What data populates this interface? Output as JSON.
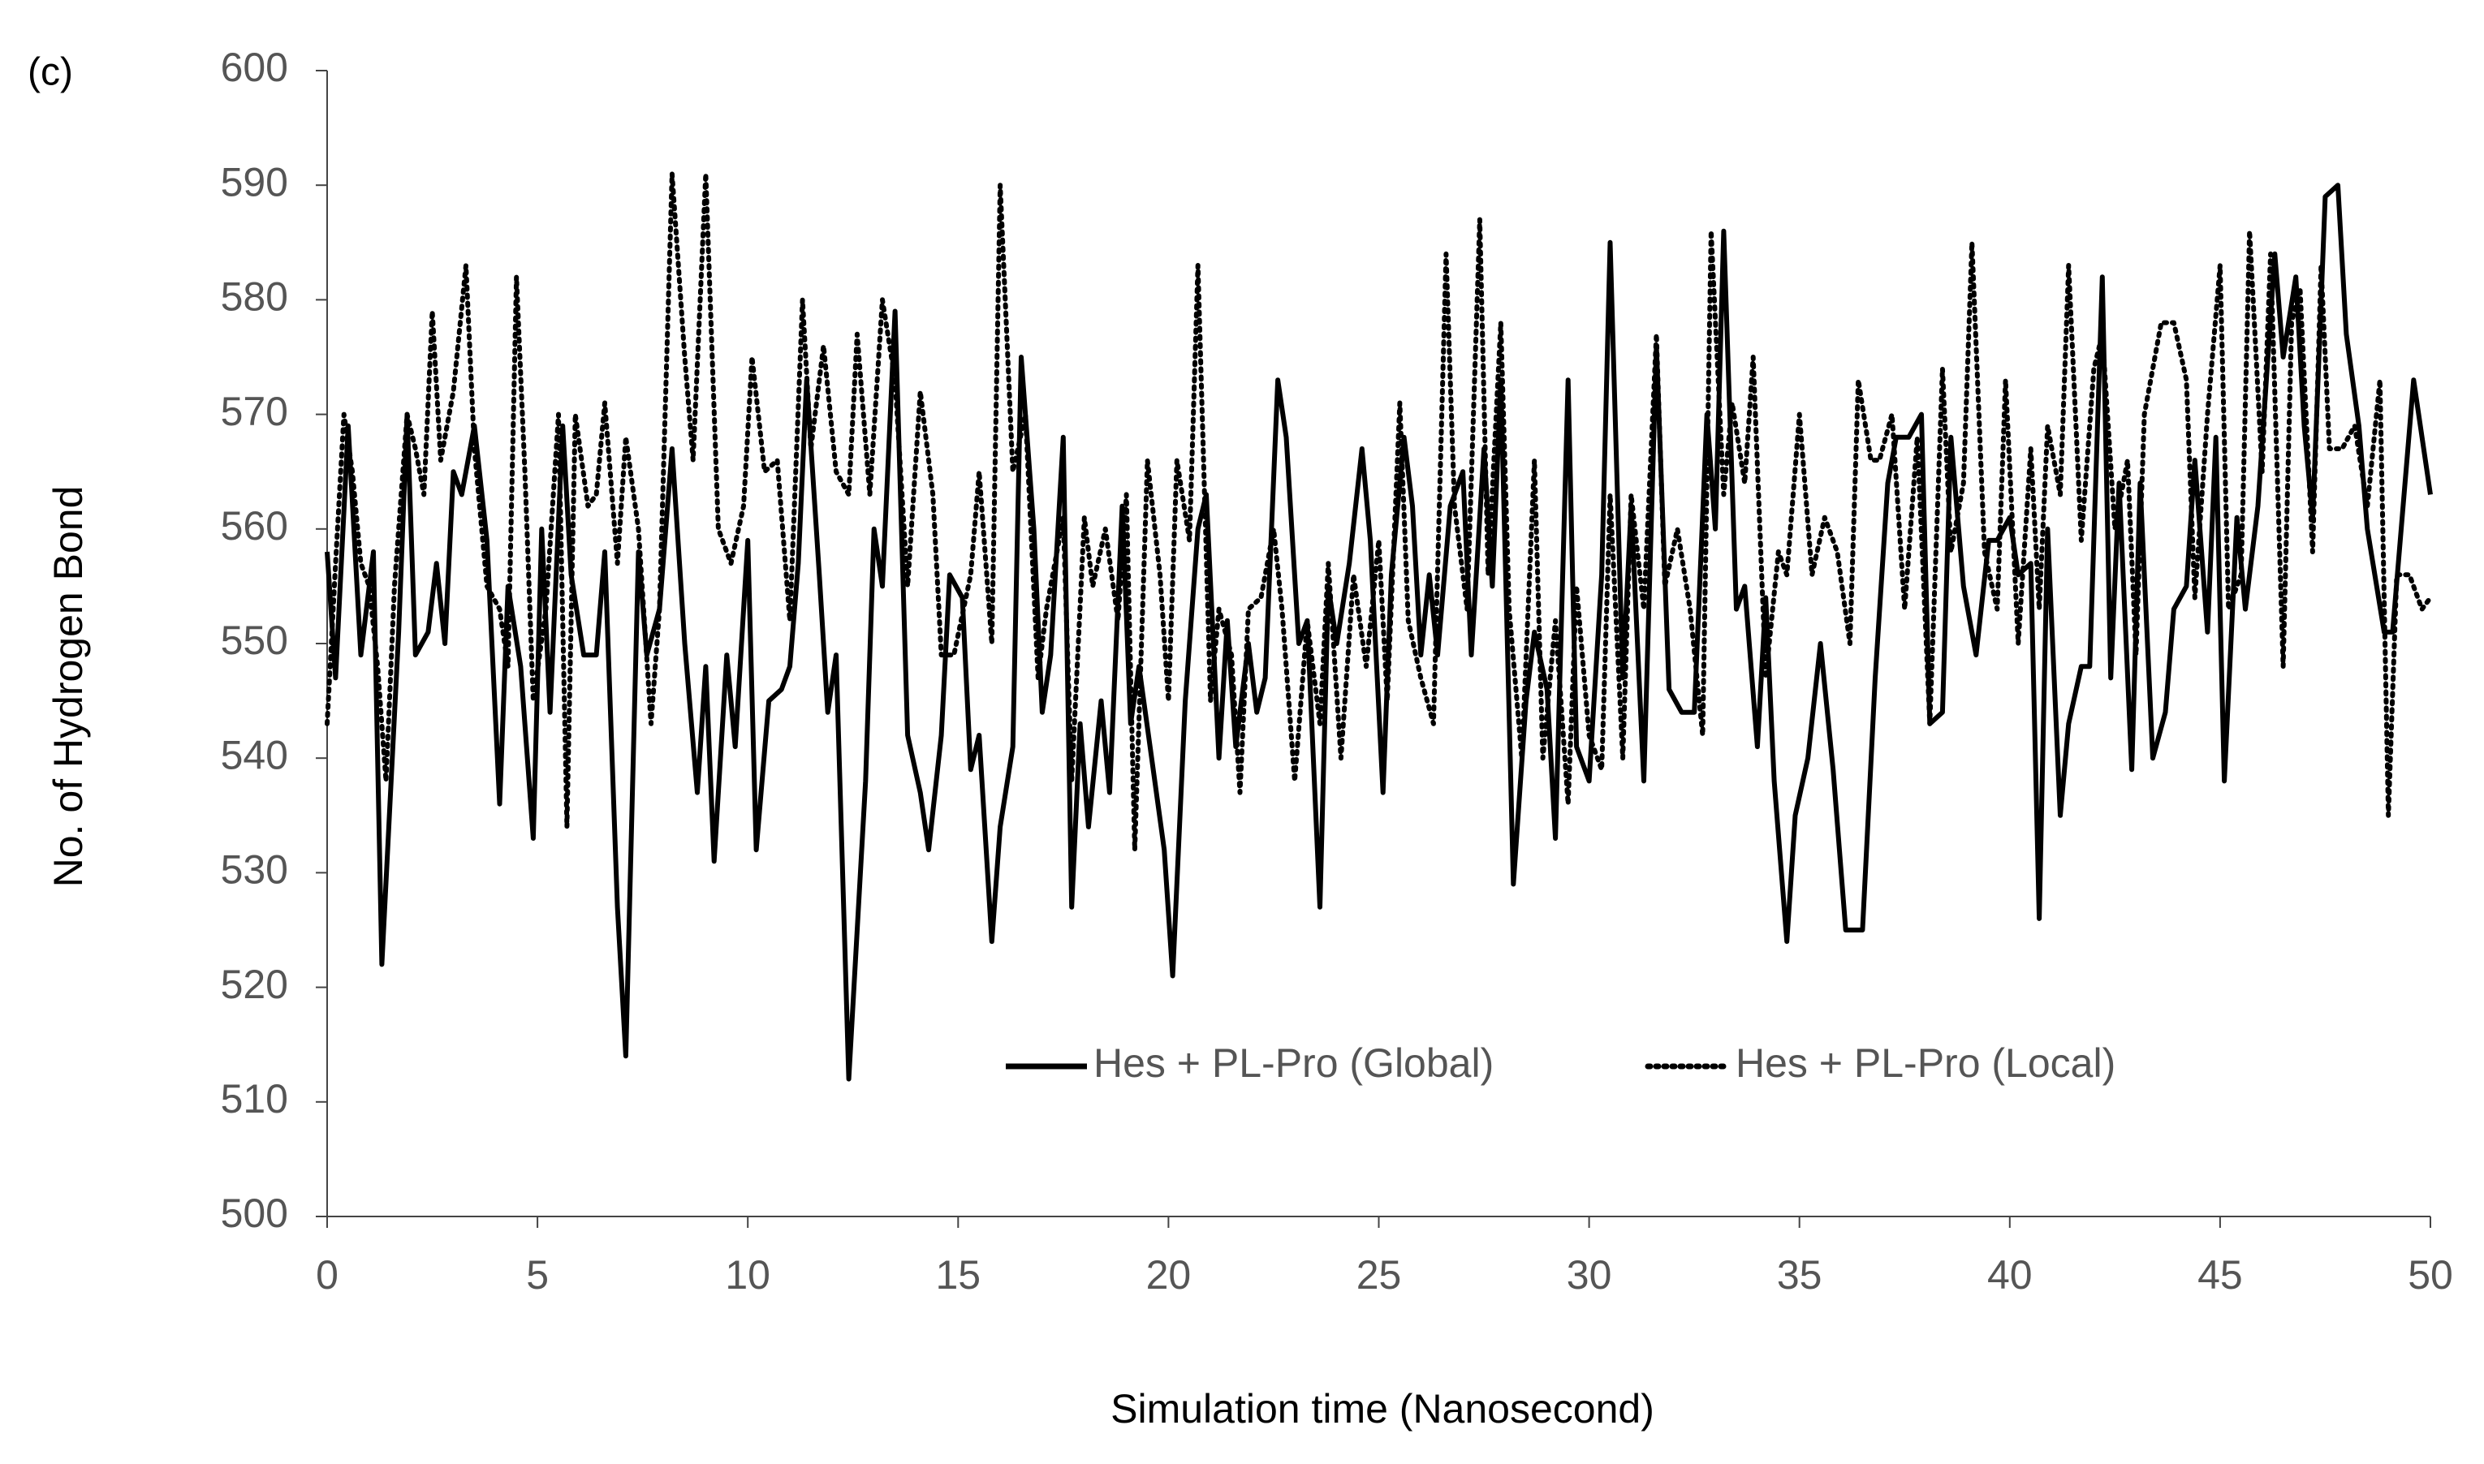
{
  "chart_data": {
    "type": "line",
    "panel_label": "(c)",
    "x_label": "Simulation time (Nanosecond)",
    "y_label": "No. of Hydrogen Bond",
    "xlim": [
      0,
      50
    ],
    "xticks": [
      0,
      5,
      10,
      15,
      20,
      25,
      30,
      35,
      40,
      45,
      50
    ],
    "ylim": [
      500,
      600
    ],
    "yticks": [
      500,
      510,
      520,
      530,
      540,
      550,
      560,
      570,
      580,
      590,
      600
    ],
    "grid": false,
    "legend": "lower right",
    "series": [
      {
        "name": "Hes + PL-Pro (Global)",
        "color": "#000000",
        "dash": "solid",
        "x": [
          0,
          0.2,
          0.5,
          0.8,
          1.1,
          1.3,
          1.7,
          1.9,
          2.1,
          2.4,
          2.6,
          2.8,
          3.0,
          3.2,
          3.5,
          3.8,
          4.1,
          4.3,
          4.6,
          4.9,
          5.1,
          5.3,
          5.6,
          5.8,
          6.1,
          6.4,
          6.6,
          6.9,
          7.1,
          7.4,
          7.6,
          7.9,
          8.2,
          8.5,
          8.8,
          9.0,
          9.2,
          9.5,
          9.7,
          10.0,
          10.2,
          10.5,
          10.8,
          11.0,
          11.2,
          11.4,
          11.7,
          11.9,
          12.1,
          12.4,
          12.8,
          13.0,
          13.2,
          13.5,
          13.8,
          14.1,
          14.3,
          14.6,
          14.8,
          15.1,
          15.3,
          15.5,
          15.8,
          16.0,
          16.3,
          16.5,
          16.8,
          17.0,
          17.2,
          17.5,
          17.7,
          17.9,
          18.1,
          18.4,
          18.6,
          18.9,
          19.1,
          19.3,
          19.6,
          19.9,
          20.1,
          20.4,
          20.7,
          20.9,
          21.2,
          21.4,
          21.6,
          21.9,
          22.1,
          22.3,
          22.6,
          22.8,
          23.1,
          23.3,
          23.6,
          23.8,
          24.0,
          24.3,
          24.6,
          24.8,
          25.1,
          25.3,
          25.6,
          25.8,
          26.0,
          26.2,
          26.4,
          26.7,
          27.0,
          27.2,
          27.5,
          27.7,
          27.9,
          28.2,
          28.5,
          28.7,
          29.0,
          29.2,
          29.5,
          29.7,
          30.0,
          30.3,
          30.5,
          30.8,
          31.0,
          31.3,
          31.6,
          31.9,
          32.2,
          32.5,
          32.8,
          33.0,
          33.2,
          33.5,
          33.7,
          34.0,
          34.2,
          34.4,
          34.7,
          34.9,
          35.2,
          35.5,
          35.8,
          36.1,
          36.5,
          36.8,
          37.1,
          37.3,
          37.6,
          37.9,
          38.1,
          38.4,
          38.6,
          38.9,
          39.2,
          39.5,
          39.7,
          40.0,
          40.2,
          40.5,
          40.7,
          40.9,
          41.2,
          41.4,
          41.7,
          41.9,
          42.2,
          42.4,
          42.6,
          42.9,
          43.1,
          43.4,
          43.7,
          43.9,
          44.2,
          44.4,
          44.7,
          44.9,
          45.1,
          45.4,
          45.6,
          45.9,
          46.3,
          46.5,
          46.8,
          47.0,
          47.2,
          47.5,
          47.8,
          48.0,
          48.3,
          48.5,
          48.9,
          49.1,
          49.6,
          50.0
        ],
        "values": [
          558,
          547,
          569,
          549,
          558,
          522,
          551,
          570,
          549,
          551,
          557,
          550,
          565,
          563,
          569,
          559,
          536,
          555,
          548,
          533,
          560,
          544,
          569,
          556,
          549,
          549,
          558,
          527,
          514,
          558,
          549,
          553,
          567,
          550,
          537,
          548,
          531,
          549,
          541,
          559,
          532,
          545,
          546,
          548,
          557,
          573,
          556,
          544,
          549,
          512,
          538,
          560,
          555,
          579,
          542,
          537,
          532,
          542,
          556,
          554,
          539,
          542,
          524,
          534,
          541,
          575,
          560,
          544,
          549,
          568,
          527,
          543,
          534,
          545,
          537,
          562,
          543,
          548,
          540,
          532,
          521,
          545,
          560,
          563,
          540,
          552,
          541,
          550,
          544,
          547,
          573,
          568,
          550,
          552,
          527,
          555,
          550,
          557,
          567,
          559,
          537,
          556,
          568,
          562,
          549,
          556,
          549,
          562,
          565,
          549,
          567,
          555,
          573,
          529,
          545,
          551,
          546,
          533,
          573,
          541,
          538,
          556,
          585,
          547,
          562,
          538,
          576,
          546,
          544,
          544,
          570,
          560,
          586,
          553,
          555,
          541,
          554,
          538,
          524,
          535,
          540,
          550,
          539,
          525,
          525,
          547,
          564,
          568,
          568,
          570,
          543,
          544,
          568,
          555,
          549,
          559,
          559,
          561,
          556,
          557,
          526,
          560,
          535,
          543,
          548,
          548,
          582,
          547,
          564,
          539,
          564,
          540,
          544,
          553,
          555,
          566,
          551,
          568,
          538,
          561,
          553,
          562,
          584,
          575,
          582,
          569,
          561,
          589,
          590,
          577,
          569,
          560,
          551,
          551,
          573,
          563
        ]
      },
      {
        "name": "Hes + PL-Pro (Local)",
        "color": "#000000",
        "dash": "dotted",
        "x": [
          0,
          0.2,
          0.4,
          0.6,
          0.8,
          1.0,
          1.2,
          1.4,
          1.6,
          1.9,
          2.1,
          2.3,
          2.5,
          2.7,
          3.0,
          3.3,
          3.5,
          3.8,
          4.1,
          4.3,
          4.5,
          4.7,
          4.9,
          5.2,
          5.5,
          5.7,
          5.9,
          6.2,
          6.4,
          6.6,
          6.9,
          7.1,
          7.4,
          7.7,
          7.9,
          8.2,
          8.5,
          8.7,
          9.0,
          9.3,
          9.6,
          9.9,
          10.1,
          10.4,
          10.7,
          11.0,
          11.3,
          11.5,
          11.8,
          12.1,
          12.4,
          12.6,
          12.9,
          13.2,
          13.5,
          13.8,
          14.1,
          14.4,
          14.6,
          14.9,
          15.3,
          15.5,
          15.8,
          16.0,
          16.3,
          16.6,
          16.9,
          17.1,
          17.5,
          17.7,
          18.0,
          18.2,
          18.5,
          18.8,
          19.0,
          19.2,
          19.5,
          19.8,
          20.0,
          20.2,
          20.5,
          20.7,
          21.0,
          21.2,
          21.5,
          21.7,
          21.9,
          22.2,
          22.5,
          22.7,
          23.0,
          23.3,
          23.6,
          23.8,
          24.1,
          24.4,
          24.7,
          25.0,
          25.2,
          25.5,
          25.7,
          26.0,
          26.3,
          26.6,
          26.8,
          27.1,
          27.4,
          27.6,
          27.9,
          28.1,
          28.4,
          28.7,
          28.9,
          29.2,
          29.5,
          29.7,
          30.0,
          30.3,
          30.5,
          30.8,
          31.0,
          31.3,
          31.6,
          31.8,
          32.1,
          32.4,
          32.7,
          32.9,
          33.2,
          33.4,
          33.7,
          33.9,
          34.2,
          34.5,
          34.7,
          35.0,
          35.3,
          35.6,
          35.9,
          36.2,
          36.4,
          36.7,
          36.9,
          37.2,
          37.5,
          37.8,
          38.1,
          38.4,
          38.6,
          38.9,
          39.1,
          39.4,
          39.7,
          39.9,
          40.2,
          40.5,
          40.7,
          40.9,
          41.2,
          41.4,
          41.7,
          42.0,
          42.2,
          42.5,
          42.8,
          43.0,
          43.2,
          43.6,
          43.9,
          44.2,
          44.4,
          44.7,
          45.0,
          45.2,
          45.5,
          45.7,
          46.0,
          46.2,
          46.5,
          46.7,
          46.9,
          47.2,
          47.4,
          47.6,
          47.9,
          48.2,
          48.5,
          48.8,
          49.0,
          49.2,
          49.5,
          49.8,
          50.0
        ],
        "values": [
          543,
          557,
          570,
          565,
          557,
          555,
          548,
          538,
          555,
          570,
          567,
          563,
          579,
          566,
          572,
          583,
          567,
          555,
          553,
          548,
          582,
          565,
          545,
          553,
          570,
          534,
          570,
          562,
          563,
          571,
          557,
          568,
          560,
          543,
          553,
          591,
          575,
          566,
          591,
          560,
          557,
          562,
          575,
          565,
          566,
          552,
          580,
          567,
          576,
          565,
          563,
          577,
          563,
          580,
          573,
          555,
          572,
          563,
          549,
          549,
          556,
          565,
          550,
          590,
          565,
          570,
          547,
          553,
          561,
          538,
          561,
          555,
          560,
          552,
          563,
          532,
          566,
          556,
          545,
          566,
          559,
          583,
          545,
          553,
          549,
          537,
          553,
          554,
          560,
          553,
          538,
          552,
          543,
          557,
          540,
          556,
          548,
          559,
          545,
          571,
          552,
          547,
          543,
          584,
          562,
          553,
          587,
          556,
          578,
          553,
          540,
          566,
          540,
          552,
          536,
          555,
          542,
          539,
          563,
          540,
          563,
          553,
          577,
          555,
          560,
          553,
          542,
          586,
          563,
          571,
          564,
          575,
          547,
          558,
          556,
          570,
          556,
          561,
          558,
          550,
          573,
          566,
          566,
          570,
          553,
          568,
          543,
          574,
          558,
          564,
          585,
          558,
          553,
          573,
          550,
          567,
          553,
          569,
          563,
          583,
          559,
          574,
          577,
          560,
          566,
          549,
          570,
          578,
          578,
          573,
          554,
          570,
          583,
          553,
          556,
          586,
          565,
          584,
          548,
          578,
          581,
          558,
          583,
          567,
          567,
          569,
          562,
          573,
          535,
          556,
          556,
          553,
          554
        ]
      }
    ]
  }
}
